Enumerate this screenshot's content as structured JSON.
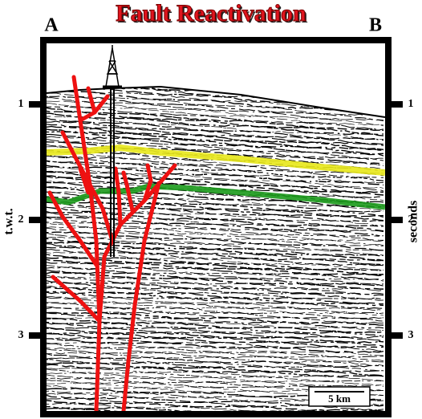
{
  "title": "Fault Reactivation",
  "left_label": "A",
  "right_label": "B",
  "left_axis_label": "t.w.t.",
  "right_axis_label": "seconds",
  "ticks": [
    1,
    2,
    3
  ],
  "scale_bar": "5 km"
}
